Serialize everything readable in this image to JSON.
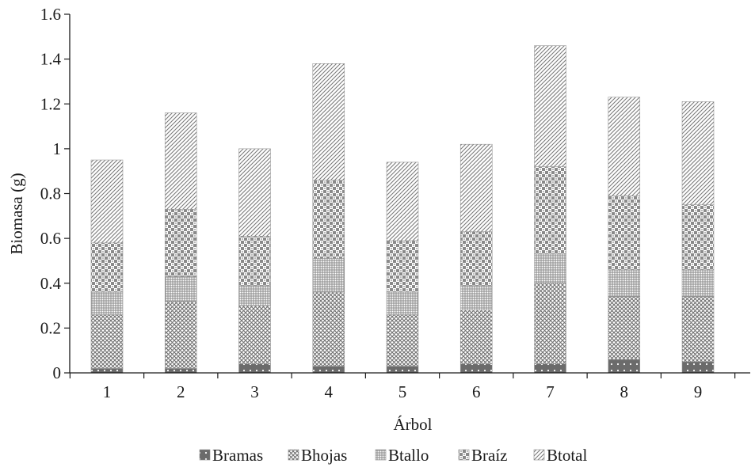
{
  "chart_data": {
    "type": "bar",
    "stacked": true,
    "title": "",
    "xlabel": "Árbol",
    "ylabel": "Biomasa (g)",
    "ylim": [
      0,
      1.6
    ],
    "yticks": [
      "0",
      "0.2",
      "0.4",
      "0.6",
      "0.8",
      "1",
      "1.2",
      "1.4",
      "1.6"
    ],
    "categories": [
      "1",
      "2",
      "3",
      "4",
      "5",
      "6",
      "7",
      "8",
      "9"
    ],
    "grid": false,
    "legend_position": "bottom",
    "series": [
      {
        "name": "Bramas",
        "values": [
          0.02,
          0.02,
          0.04,
          0.03,
          0.03,
          0.04,
          0.04,
          0.06,
          0.05
        ],
        "pattern": "dots-dark"
      },
      {
        "name": "Bhojas",
        "values": [
          0.24,
          0.3,
          0.26,
          0.33,
          0.23,
          0.24,
          0.36,
          0.28,
          0.29
        ],
        "pattern": "crosshatch-dense"
      },
      {
        "name": "Btallo",
        "values": [
          0.1,
          0.11,
          0.09,
          0.15,
          0.1,
          0.11,
          0.13,
          0.12,
          0.12
        ],
        "pattern": "hash-grid"
      },
      {
        "name": "Braíz",
        "values": [
          0.22,
          0.3,
          0.22,
          0.35,
          0.23,
          0.24,
          0.39,
          0.33,
          0.29
        ],
        "pattern": "checker"
      },
      {
        "name": "Btotal",
        "values": [
          0.37,
          0.43,
          0.39,
          0.52,
          0.35,
          0.39,
          0.54,
          0.44,
          0.46
        ],
        "pattern": "diagonal"
      }
    ]
  }
}
